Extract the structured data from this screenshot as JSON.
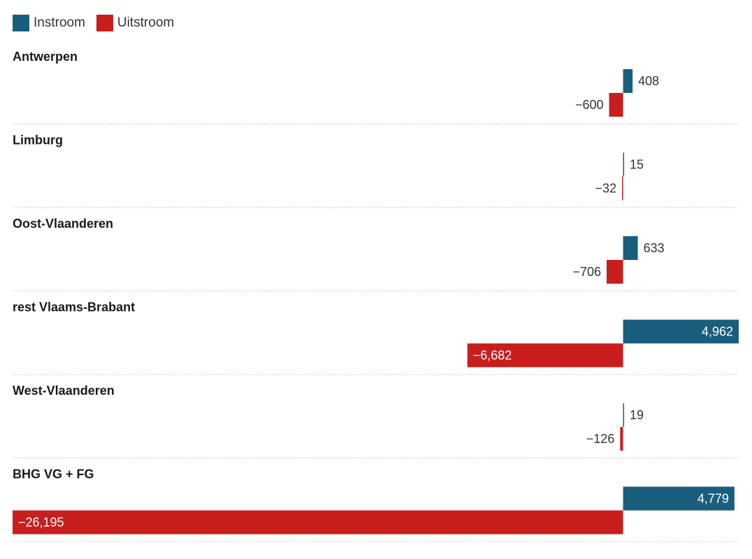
{
  "colors": {
    "inflow": "#1a5e7e",
    "outflow": "#c81e1e",
    "separator": "#c8c8c8"
  },
  "chart_data": {
    "type": "bar",
    "orientation": "horizontal",
    "legend_position": "top-left",
    "categories": [
      "Antwerpen",
      "Limburg",
      "Oost-Vlaanderen",
      "rest Vlaams-Brabant",
      "West-Vlaanderen",
      "BHG VG + FG"
    ],
    "series": [
      {
        "name": "Instroom",
        "values": [
          408,
          15,
          633,
          4962,
          19,
          4779
        ],
        "labels": [
          "408",
          "15",
          "633",
          "4,962",
          "19",
          "4,779"
        ]
      },
      {
        "name": "Uitstroom",
        "values": [
          -600,
          -32,
          -706,
          -6682,
          -126,
          -26195
        ],
        "labels": [
          "−600",
          "−32",
          "−706",
          "−6,682",
          "−126",
          "−26,195"
        ]
      }
    ],
    "xlim": [
      -26195,
      4962
    ]
  }
}
